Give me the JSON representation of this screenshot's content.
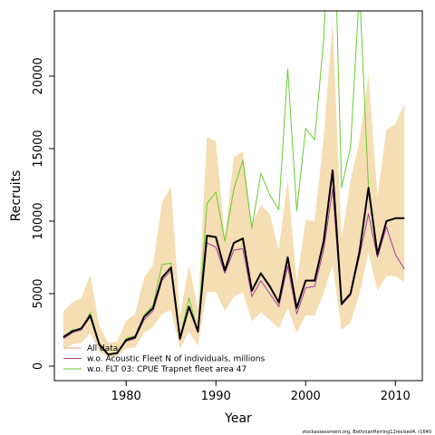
{
  "chart_data": {
    "type": "line",
    "xlabel": "Year",
    "ylabel": "Recruits",
    "xlim": [
      1972,
      2013
    ],
    "ylim": [
      -1000,
      24500
    ],
    "x_ticks": [
      1980,
      1990,
      2000,
      2010
    ],
    "y_ticks": [
      0,
      5000,
      10000,
      15000,
      20000
    ],
    "grid": false,
    "legend_position": "bottom-left",
    "credit": "stockassessment.org, BothnianHerring12revised4, r1640",
    "x": [
      1973,
      1974,
      1975,
      1976,
      1977,
      1978,
      1979,
      1980,
      1981,
      1982,
      1983,
      1984,
      1985,
      1986,
      1987,
      1988,
      1989,
      1990,
      1991,
      1992,
      1993,
      1994,
      1995,
      1996,
      1997,
      1998,
      1999,
      2000,
      2001,
      2002,
      2003,
      2004,
      2005,
      2006,
      2007,
      2008,
      2009,
      2010,
      2011
    ],
    "band": {
      "color": "#f5deb3",
      "lower": [
        1200,
        1500,
        1600,
        2300,
        1000,
        600,
        700,
        1200,
        1300,
        2300,
        2700,
        3600,
        3900,
        1200,
        2400,
        1400,
        5100,
        5100,
        3800,
        4800,
        5100,
        3100,
        3700,
        3200,
        2600,
        4000,
        2300,
        3500,
        3500,
        5000,
        7000,
        2500,
        3000,
        5000,
        7800,
        5200,
        6200,
        6200,
        5800
      ],
      "upper": [
        3800,
        4400,
        4700,
        6300,
        2800,
        1600,
        1700,
        3100,
        3600,
        6100,
        7000,
        11300,
        12400,
        3400,
        7000,
        3900,
        15800,
        15500,
        8900,
        14400,
        14800,
        9800,
        11100,
        10500,
        8000,
        12900,
        5800,
        10100,
        10000,
        15700,
        23700,
        8800,
        12800,
        15500,
        20100,
        11700,
        16300,
        16700,
        18100
      ]
    },
    "series": [
      {
        "name": "All data",
        "color": "#000000",
        "width": 2,
        "values": [
          2000,
          2400,
          2600,
          3500,
          1500,
          800,
          900,
          1800,
          2000,
          3400,
          4000,
          6100,
          6800,
          1900,
          4100,
          2400,
          9000,
          8900,
          6600,
          8500,
          8800,
          5200,
          6400,
          5500,
          4400,
          7500,
          4000,
          5900,
          5900,
          8600,
          13500,
          4300,
          5000,
          7900,
          12300,
          7700,
          10000,
          10200,
          10200
        ]
      },
      {
        "name": "w.o. Acoustic Fleet  N of individuals, millions",
        "color": "#a03ca0",
        "width": 1,
        "values": [
          1900,
          2300,
          2500,
          3400,
          1400,
          800,
          900,
          1700,
          1900,
          3200,
          3800,
          5900,
          6600,
          1800,
          4000,
          2300,
          8500,
          8200,
          6400,
          8000,
          8100,
          4800,
          5900,
          5000,
          4100,
          6900,
          3600,
          5400,
          5500,
          8000,
          12200,
          4200,
          4900,
          7600,
          10500,
          7500,
          9600,
          7700,
          6700
        ]
      },
      {
        "name": "w.o. FLT 03: CPUE Trapnet fleet area 47",
        "color": "#66cc33",
        "width": 1,
        "values": [
          2000,
          2500,
          2500,
          3700,
          1600,
          800,
          900,
          1900,
          2100,
          3500,
          4200,
          7000,
          7100,
          1900,
          4700,
          2400,
          11200,
          12000,
          8600,
          12200,
          14200,
          9500,
          13300,
          11800,
          10800,
          20500,
          10700,
          16400,
          15600,
          22500,
          35000,
          12300,
          15100,
          26000,
          12300,
          7700,
          10000,
          10200,
          10200
        ]
      }
    ],
    "legend_entries": [
      {
        "label": "All data",
        "color": "#f4a582"
      },
      {
        "label": "w.o. Acoustic Fleet  N of individuals, millions",
        "color": "#a03ca0"
      },
      {
        "label": "w.o. FLT 03: CPUE Trapnet fleet area 47",
        "color": "#66cc33"
      }
    ]
  }
}
